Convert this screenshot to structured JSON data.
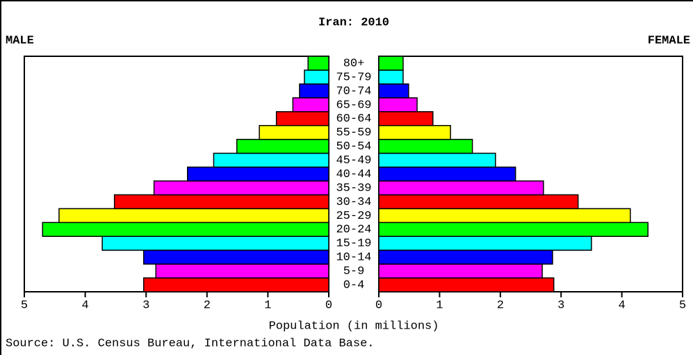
{
  "chart_data": {
    "type": "population-pyramid",
    "title": "Iran: 2010",
    "xlabel": "Population (in millions)",
    "source": "Source: U.S. Census Bureau, International Data Base.",
    "categories": [
      "0-4",
      "5-9",
      "10-14",
      "15-19",
      "20-24",
      "25-29",
      "30-34",
      "35-39",
      "40-44",
      "45-49",
      "50-54",
      "55-59",
      "60-64",
      "65-69",
      "70-74",
      "75-79",
      "80+"
    ],
    "colors": [
      "#ff0000",
      "#ff00ff",
      "#0000ff",
      "#00ffff",
      "#00ff00",
      "#ffff00",
      "#ff0000",
      "#ff00ff",
      "#0000ff",
      "#00ffff",
      "#00ff00",
      "#ffff00",
      "#ff0000",
      "#ff00ff",
      "#0000ff",
      "#00ffff",
      "#00ff00"
    ],
    "series": [
      {
        "name": "MALE",
        "side": "left",
        "values": [
          3.04,
          2.84,
          3.04,
          3.72,
          4.7,
          4.43,
          3.52,
          2.87,
          2.32,
          1.89,
          1.51,
          1.14,
          0.86,
          0.59,
          0.48,
          0.4,
          0.34
        ]
      },
      {
        "name": "FEMALE",
        "side": "right",
        "values": [
          2.88,
          2.69,
          2.86,
          3.5,
          4.43,
          4.14,
          3.28,
          2.71,
          2.25,
          1.92,
          1.54,
          1.18,
          0.89,
          0.63,
          0.49,
          0.4,
          0.4
        ]
      }
    ],
    "xlim": [
      0,
      5
    ],
    "xticks": [
      0,
      1,
      2,
      3,
      4,
      5
    ]
  }
}
